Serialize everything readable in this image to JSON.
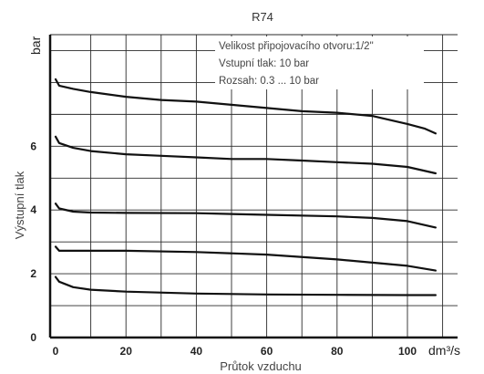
{
  "chart_data": {
    "type": "line",
    "title": "R74",
    "xlabel": "Průtok vzduchu",
    "ylabel": "Výstupní tlak",
    "x_unit": "dm³/s",
    "y_unit": "bar",
    "xlim": [
      0,
      110
    ],
    "ylim": [
      0,
      9.5
    ],
    "x_ticks": [
      "0",
      "20",
      "40",
      "60",
      "80",
      "100"
    ],
    "x_tick_values": [
      0,
      20,
      40,
      60,
      80,
      100
    ],
    "y_ticks": [
      "0",
      "2",
      "4",
      "6"
    ],
    "y_tick_values": [
      0,
      2,
      4,
      6
    ],
    "grid": true,
    "annotations": [
      "Velikost připojovacího otvoru:1/2\"",
      "Vstupní tlak: 10 bar",
      "Rozsah: 0.3 ... 10 bar"
    ],
    "series": [
      {
        "values": [
          [
            0,
            8.1
          ],
          [
            1,
            7.9
          ],
          [
            5,
            7.8
          ],
          [
            10,
            7.7
          ],
          [
            20,
            7.55
          ],
          [
            30,
            7.45
          ],
          [
            40,
            7.4
          ],
          [
            50,
            7.3
          ],
          [
            60,
            7.2
          ],
          [
            70,
            7.1
          ],
          [
            80,
            7.05
          ],
          [
            90,
            6.95
          ],
          [
            100,
            6.7
          ],
          [
            105,
            6.55
          ],
          [
            108,
            6.4
          ]
        ]
      },
      {
        "values": [
          [
            0,
            6.3
          ],
          [
            1,
            6.1
          ],
          [
            5,
            5.95
          ],
          [
            10,
            5.85
          ],
          [
            20,
            5.75
          ],
          [
            30,
            5.7
          ],
          [
            40,
            5.65
          ],
          [
            50,
            5.6
          ],
          [
            60,
            5.6
          ],
          [
            70,
            5.55
          ],
          [
            80,
            5.5
          ],
          [
            90,
            5.45
          ],
          [
            100,
            5.35
          ],
          [
            108,
            5.15
          ]
        ]
      },
      {
        "values": [
          [
            0,
            4.2
          ],
          [
            1,
            4.05
          ],
          [
            5,
            3.95
          ],
          [
            10,
            3.92
          ],
          [
            20,
            3.91
          ],
          [
            40,
            3.9
          ],
          [
            60,
            3.85
          ],
          [
            80,
            3.8
          ],
          [
            90,
            3.75
          ],
          [
            100,
            3.65
          ],
          [
            108,
            3.45
          ]
        ]
      },
      {
        "values": [
          [
            0,
            2.85
          ],
          [
            1,
            2.72
          ],
          [
            5,
            2.72
          ],
          [
            20,
            2.72
          ],
          [
            40,
            2.68
          ],
          [
            60,
            2.6
          ],
          [
            80,
            2.45
          ],
          [
            90,
            2.35
          ],
          [
            100,
            2.25
          ],
          [
            108,
            2.1
          ]
        ]
      },
      {
        "values": [
          [
            0,
            1.9
          ],
          [
            1,
            1.75
          ],
          [
            5,
            1.58
          ],
          [
            10,
            1.5
          ],
          [
            20,
            1.44
          ],
          [
            40,
            1.38
          ],
          [
            60,
            1.35
          ],
          [
            80,
            1.34
          ],
          [
            100,
            1.33
          ],
          [
            108,
            1.33
          ]
        ]
      }
    ]
  }
}
